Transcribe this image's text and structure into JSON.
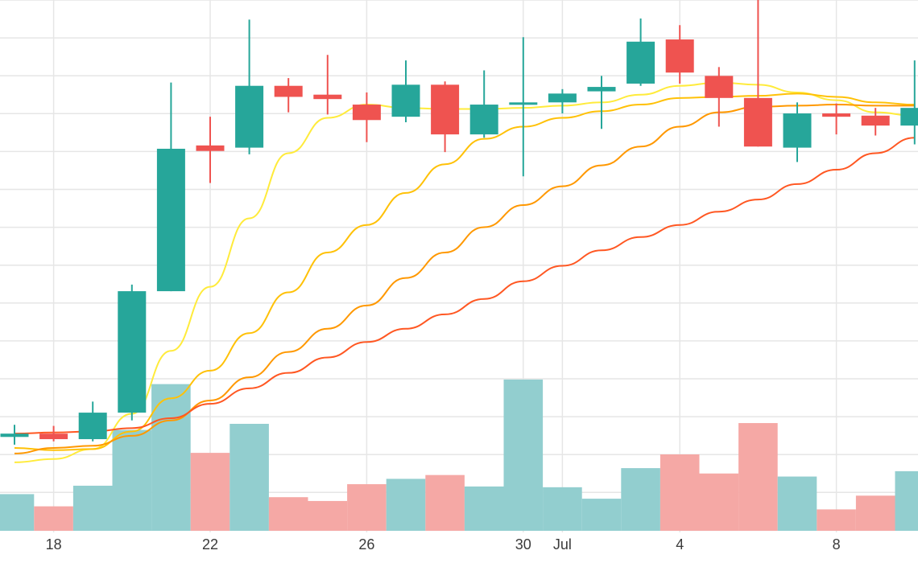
{
  "chart_data": {
    "type": "candlestick",
    "x_tick_labels": [
      "18",
      "22",
      "26",
      "30",
      "Jul",
      "4",
      "8"
    ],
    "x_tick_dates": [
      "06-18",
      "06-22",
      "06-26",
      "06-30",
      "07-01",
      "07-04",
      "07-08"
    ],
    "grid": true,
    "colors": {
      "up": "#26a69a",
      "down": "#ef5350",
      "volume_up": "#92cecf",
      "volume_down": "#f5a8a5",
      "ma1": "#ffeb3b",
      "ma2": "#ffc107",
      "ma3": "#ff9800",
      "ma4": "#ff5722"
    },
    "candles": [
      {
        "date": "06-17",
        "open": 8.5,
        "close": 8.8,
        "high": 9.6,
        "low": 7.8,
        "volume": 48
      },
      {
        "date": "06-18",
        "open": 8.8,
        "close": 8.3,
        "high": 9.5,
        "low": 8.1,
        "volume": 32
      },
      {
        "date": "06-19",
        "open": 8.3,
        "close": 10.7,
        "high": 11.7,
        "low": 8.1,
        "volume": 59
      },
      {
        "date": "06-20",
        "open": 10.7,
        "close": 21.7,
        "high": 22.3,
        "low": 10.0,
        "volume": 132
      },
      {
        "date": "06-21",
        "open": 21.7,
        "close": 34.6,
        "high": 40.6,
        "low": 21.7,
        "volume": 192
      },
      {
        "date": "06-22",
        "open": 34.9,
        "close": 34.4,
        "high": 37.5,
        "low": 31.5,
        "volume": 102
      },
      {
        "date": "06-23",
        "open": 34.7,
        "close": 40.3,
        "high": 46.3,
        "low": 34.1,
        "volume": 140
      },
      {
        "date": "06-24",
        "open": 40.3,
        "close": 39.3,
        "high": 41.0,
        "low": 37.9,
        "volume": 44
      },
      {
        "date": "06-25",
        "open": 39.5,
        "close": 39.1,
        "high": 43.1,
        "low": 37.7,
        "volume": 39
      },
      {
        "date": "06-26",
        "open": 38.6,
        "close": 37.2,
        "high": 39.7,
        "low": 35.2,
        "volume": 61
      },
      {
        "date": "06-27",
        "open": 37.5,
        "close": 40.4,
        "high": 42.6,
        "low": 37.0,
        "volume": 68
      },
      {
        "date": "06-28",
        "open": 40.4,
        "close": 35.9,
        "high": 40.7,
        "low": 34.3,
        "volume": 73
      },
      {
        "date": "06-29",
        "open": 35.9,
        "close": 38.6,
        "high": 41.7,
        "low": 35.6,
        "volume": 58
      },
      {
        "date": "06-30",
        "open": 38.6,
        "close": 38.8,
        "high": 44.7,
        "low": 32.1,
        "volume": 198
      },
      {
        "date": "07-01",
        "open": 38.8,
        "close": 39.6,
        "high": 40.0,
        "low": 37.8,
        "volume": 57
      },
      {
        "date": "07-02",
        "open": 39.8,
        "close": 40.2,
        "high": 41.2,
        "low": 36.4,
        "volume": 42
      },
      {
        "date": "07-03",
        "open": 40.5,
        "close": 44.3,
        "high": 46.4,
        "low": 40.3,
        "volume": 82
      },
      {
        "date": "07-04",
        "open": 44.5,
        "close": 41.5,
        "high": 45.8,
        "low": 40.5,
        "volume": 100
      },
      {
        "date": "07-05",
        "open": 41.2,
        "close": 39.2,
        "high": 42.0,
        "low": 36.6,
        "volume": 75
      },
      {
        "date": "07-06",
        "open": 39.2,
        "close": 34.8,
        "high": 48.1,
        "low": 34.8,
        "volume": 141
      },
      {
        "date": "07-07",
        "open": 34.7,
        "close": 37.8,
        "high": 38.8,
        "low": 33.4,
        "volume": 71
      },
      {
        "date": "07-08",
        "open": 37.8,
        "close": 37.5,
        "high": 38.7,
        "low": 35.9,
        "volume": 28
      },
      {
        "date": "07-09",
        "open": 37.6,
        "close": 36.7,
        "high": 38.3,
        "low": 35.8,
        "volume": 46
      },
      {
        "date": "07-10",
        "open": 36.7,
        "close": 38.3,
        "high": 42.6,
        "low": 35.0,
        "volume": 78
      }
    ],
    "moving_averages": [
      {
        "color": "ma1",
        "values": [
          6.2,
          6.5,
          7.4,
          10.6,
          16.3,
          22.1,
          28.3,
          34.2,
          37.4,
          38.6,
          38.3,
          38.2,
          38.2,
          38.3,
          38.5,
          38.8,
          39.5,
          40.3,
          40.6,
          40.4,
          39.7,
          39.0,
          37.9,
          37.6
        ]
      },
      {
        "color": "ma2",
        "values": [
          7.5,
          7.3,
          7.4,
          9.0,
          12.0,
          14.5,
          17.9,
          21.6,
          25.2,
          27.7,
          30.6,
          33.2,
          35.5,
          36.6,
          37.4,
          38.0,
          38.6,
          39.2,
          39.3,
          39.4,
          39.6,
          39.3,
          38.8,
          38.6
        ]
      },
      {
        "color": "ma3",
        "values": [
          7.0,
          7.5,
          7.7,
          8.6,
          10.0,
          11.8,
          13.9,
          16.2,
          18.3,
          20.4,
          22.9,
          25.2,
          27.5,
          29.5,
          31.2,
          33.1,
          34.8,
          36.6,
          37.9,
          38.4,
          38.5,
          38.6,
          38.5,
          38.5
        ]
      },
      {
        "color": "ma4",
        "values": [
          8.8,
          8.9,
          9.0,
          9.3,
          10.2,
          11.5,
          12.9,
          14.3,
          15.7,
          17.1,
          18.3,
          19.6,
          21.0,
          22.6,
          24.0,
          25.4,
          26.6,
          27.7,
          28.9,
          30.0,
          31.4,
          32.7,
          34.2,
          35.6
        ]
      }
    ]
  }
}
